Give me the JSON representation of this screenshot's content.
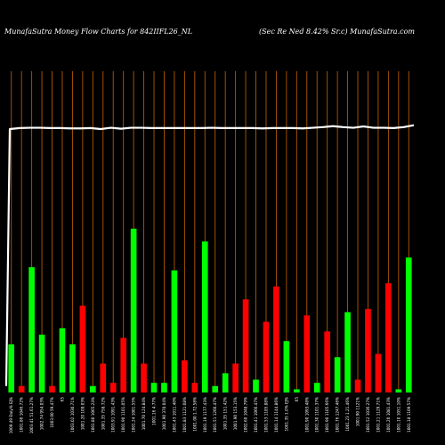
{
  "header": {
    "left_title": "MunafaSutra  Money Flow  Charts for 842IIFL26_NL",
    "right_title": "(Sec Re    Ned 8.42% Sr.c) MunafaSutra.com"
  },
  "colors": {
    "background": "#000000",
    "positive": "#00ff00",
    "negative": "#ff0000",
    "gridline": "#b35900",
    "line": "#ffffff"
  },
  "chart_data": {
    "type": "bar",
    "title": "MunafaSutra  Money Flow  Charts for 842IIFL26_NL",
    "grid": true,
    "ylim": [
      0,
      100
    ],
    "categories": [
      "1009.49 Daly% EJ%",
      "1001.80 1046.72%",
      "1003.41 51.61.27%",
      "1002.74 954.03%",
      "1003.00 59.47%",
      "65",
      "1003.02 1030.71%",
      "1001.20 109.03%",
      "1001.80 1065.24%",
      "1001.35 758.72%",
      "1003.91 1091.43%",
      "1001.90 1101.05%",
      "1001.24 1001.55%",
      "1001.70 124.84%",
      "1001.16 4.77%",
      "1001.90 370.04%",
      "1001.43 1011.40%",
      "1001.83 1121.08%",
      "1001.00 1.72.58%",
      "1001.19 1177.43%",
      "1001.51 1260.47%",
      "1001.35 151.42%",
      "1001.90 153.15%",
      "1002.60 1048.79%",
      "1001.41 1066.47%",
      "1001.53 1185.88%",
      "1001.14 1144.86%",
      "1001.35 1.0% EJ%",
      "65",
      "1001.90 1093.48%",
      "1001.30 1101.37%",
      "1001.90 1105.66%",
      "1001.76 1247.46%",
      "1001.23 1.21.46%",
      "1001.90 1121%",
      "1001.52 1036.27%",
      "1001.21 1129.71%",
      "1001.20 1081.43%",
      "1001.10 1051.10%",
      "1001.18 1109.57%"
    ],
    "bar_directions": [
      "up",
      "down",
      "up",
      "up",
      "down",
      "up",
      "up",
      "down",
      "up",
      "down",
      "down",
      "down",
      "up",
      "down",
      "up",
      "up",
      "up",
      "down",
      "down",
      "up",
      "up",
      "up",
      "down",
      "down",
      "up",
      "down",
      "down",
      "up",
      "up",
      "down",
      "up",
      "down",
      "up",
      "up",
      "down",
      "down",
      "down",
      "down",
      "up",
      "up"
    ],
    "values": [
      15,
      2,
      39,
      18,
      2,
      20,
      15,
      27,
      2,
      9,
      3,
      17,
      51,
      9,
      3,
      3,
      38,
      10,
      3,
      47,
      2,
      6,
      9,
      29,
      4,
      22,
      33,
      16,
      1,
      24,
      3,
      19,
      11,
      25,
      4,
      26,
      12,
      34,
      1,
      42
    ],
    "price_line": [
      82,
      82.3,
      82.4,
      82.4,
      82.3,
      82.3,
      82.2,
      82.2,
      82.3,
      82.0,
      82.4,
      82.1,
      82.4,
      82.4,
      82.3,
      82.3,
      82.3,
      82.3,
      82.3,
      82.3,
      82.4,
      82.3,
      82.3,
      82.3,
      82.3,
      82.2,
      82.3,
      82.3,
      82.3,
      82.2,
      82.4,
      82.6,
      82.9,
      82.6,
      82.4,
      82.8,
      82.4,
      82.4,
      82.3,
      82.6,
      83.2
    ],
    "price_line_start": 2
  }
}
